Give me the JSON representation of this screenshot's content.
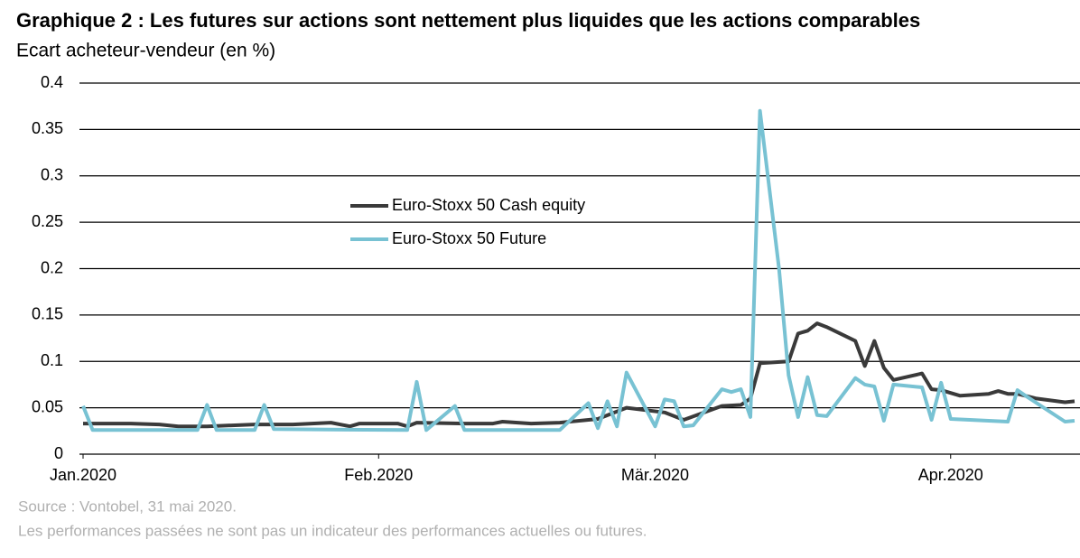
{
  "chart_data": {
    "type": "line",
    "title": "Graphique 2 : Les futures sur actions sont nettement plus liquides que les actions comparables",
    "subtitle": "Ecart acheteur-vendeur (en %)",
    "source": "Source : Vontobel, 31 mai 2020.",
    "note": "Les performances passées ne sont pas un indicateur des performances actuelles ou futures.",
    "xlim": [
      0,
      104
    ],
    "xticks": [
      {
        "value": 0,
        "label": "Jan.2020"
      },
      {
        "value": 31,
        "label": "Feb.2020"
      },
      {
        "value": 60,
        "label": "Mär.2020"
      },
      {
        "value": 91,
        "label": "Apr.2020"
      }
    ],
    "ylim": [
      0,
      0.4
    ],
    "yticks": [
      0,
      0.05,
      0.1,
      0.15,
      0.2,
      0.25,
      0.3,
      0.35,
      0.4
    ],
    "grid": true,
    "series": [
      {
        "name": "Euro-Stoxx 50 Cash equity",
        "color": "#3a3a3a",
        "x": [
          0,
          5,
          8,
          10,
          13,
          18,
          22,
          26,
          28,
          29,
          33,
          34,
          35,
          40,
          43,
          44,
          47,
          50,
          54,
          57,
          61,
          63,
          67,
          69,
          70,
          71,
          74,
          75,
          76,
          77,
          78,
          81,
          82,
          83,
          84,
          85,
          88,
          89,
          90,
          92,
          95,
          96,
          97,
          98,
          100,
          103,
          104
        ],
        "values": [
          0.033,
          0.033,
          0.032,
          0.03,
          0.03,
          0.032,
          0.032,
          0.034,
          0.03,
          0.033,
          0.033,
          0.03,
          0.034,
          0.033,
          0.033,
          0.035,
          0.033,
          0.034,
          0.038,
          0.05,
          0.045,
          0.037,
          0.052,
          0.053,
          0.06,
          0.098,
          0.1,
          0.13,
          0.133,
          0.141,
          0.137,
          0.122,
          0.095,
          0.122,
          0.093,
          0.08,
          0.087,
          0.07,
          0.069,
          0.063,
          0.065,
          0.068,
          0.065,
          0.065,
          0.06,
          0.056,
          0.057
        ]
      },
      {
        "name": "Euro-Stoxx 50 Future",
        "color": "#78c2d3",
        "x": [
          0,
          1,
          12,
          13,
          14,
          18,
          19,
          20,
          34,
          35,
          36,
          39,
          40,
          50,
          53,
          54,
          55,
          56,
          57,
          60,
          61,
          62,
          63,
          64,
          67,
          68,
          69,
          70,
          71,
          73,
          74,
          75,
          76,
          77,
          78,
          81,
          82,
          83,
          84,
          85,
          88,
          89,
          90,
          91,
          97,
          98,
          99,
          103,
          104
        ],
        "values": [
          0.052,
          0.026,
          0.026,
          0.053,
          0.026,
          0.026,
          0.053,
          0.027,
          0.026,
          0.078,
          0.026,
          0.052,
          0.026,
          0.026,
          0.055,
          0.028,
          0.057,
          0.03,
          0.088,
          0.03,
          0.059,
          0.057,
          0.03,
          0.031,
          0.07,
          0.067,
          0.07,
          0.04,
          0.37,
          0.2,
          0.085,
          0.04,
          0.083,
          0.042,
          0.041,
          0.082,
          0.075,
          0.073,
          0.036,
          0.075,
          0.072,
          0.037,
          0.077,
          0.038,
          0.035,
          0.069,
          0.062,
          0.035,
          0.036
        ]
      }
    ]
  }
}
